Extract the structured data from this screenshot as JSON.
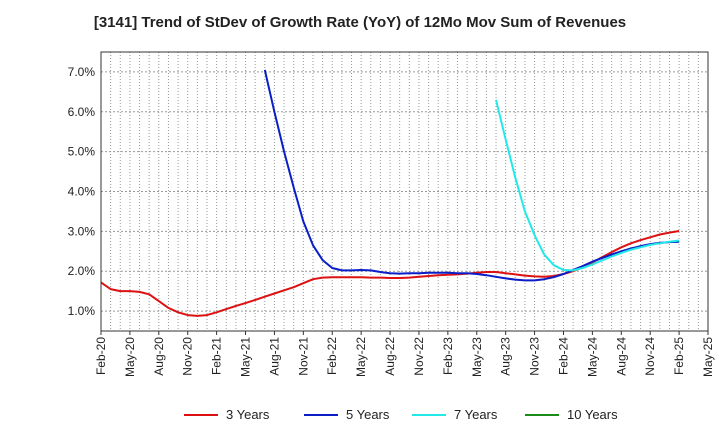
{
  "chart_data": {
    "type": "line",
    "title": "[3141]  Trend of StDev of Growth Rate (YoY) of 12Mo Mov Sum of Revenues",
    "xlabel": "",
    "ylabel": "",
    "ylim": [
      0.5,
      7.5
    ],
    "yticks": [
      1.0,
      2.0,
      3.0,
      4.0,
      5.0,
      6.0,
      7.0
    ],
    "ytick_labels": [
      "1.0%",
      "2.0%",
      "3.0%",
      "4.0%",
      "5.0%",
      "6.0%",
      "7.0%"
    ],
    "x_range_months": [
      0,
      63
    ],
    "xticks": [
      0,
      3,
      6,
      9,
      12,
      15,
      18,
      21,
      24,
      27,
      30,
      33,
      36,
      39,
      42,
      45,
      48,
      51,
      54,
      57,
      60,
      63
    ],
    "xtick_labels": [
      "Feb-20",
      "May-20",
      "Aug-20",
      "Nov-20",
      "Feb-21",
      "May-21",
      "Aug-21",
      "Nov-21",
      "Feb-22",
      "May-22",
      "Aug-22",
      "Nov-22",
      "Feb-23",
      "May-23",
      "Aug-23",
      "Nov-23",
      "Feb-24",
      "May-24",
      "Aug-24",
      "Nov-24",
      "Feb-25",
      "May-25"
    ],
    "grid": true,
    "legend_position": "bottom",
    "series": [
      {
        "name": "3 Years",
        "color": "#dd1111",
        "x": [
          0,
          1,
          2,
          3,
          4,
          5,
          6,
          7,
          8,
          9,
          10,
          11,
          12,
          13,
          14,
          15,
          16,
          17,
          18,
          19,
          20,
          21,
          22,
          23,
          24,
          25,
          26,
          27,
          28,
          29,
          30,
          31,
          32,
          33,
          34,
          35,
          36,
          37,
          38,
          39,
          40,
          41,
          42,
          43,
          44,
          45,
          46,
          47,
          48,
          49,
          50,
          51,
          52,
          53,
          54,
          55,
          56,
          57,
          58,
          59,
          60
        ],
        "values": [
          1.72,
          1.55,
          1.5,
          1.5,
          1.48,
          1.42,
          1.25,
          1.08,
          0.97,
          0.9,
          0.88,
          0.9,
          0.97,
          1.05,
          1.13,
          1.2,
          1.28,
          1.36,
          1.44,
          1.52,
          1.6,
          1.7,
          1.8,
          1.84,
          1.85,
          1.85,
          1.85,
          1.85,
          1.84,
          1.84,
          1.83,
          1.83,
          1.84,
          1.86,
          1.88,
          1.9,
          1.91,
          1.92,
          1.94,
          1.96,
          1.98,
          1.98,
          1.95,
          1.92,
          1.89,
          1.87,
          1.86,
          1.88,
          1.93,
          2.0,
          2.1,
          2.22,
          2.35,
          2.48,
          2.6,
          2.7,
          2.78,
          2.85,
          2.92,
          2.97,
          3.01
        ]
      },
      {
        "name": "5 Years",
        "color": "#0a1ec8",
        "x": [
          17,
          18,
          19,
          20,
          21,
          22,
          23,
          24,
          25,
          26,
          27,
          28,
          29,
          30,
          31,
          32,
          33,
          34,
          35,
          36,
          37,
          38,
          39,
          40,
          41,
          42,
          43,
          44,
          45,
          46,
          47,
          48,
          49,
          50,
          51,
          52,
          53,
          54,
          55,
          56,
          57,
          58,
          59,
          60
        ],
        "values": [
          7.05,
          6.0,
          5.0,
          4.1,
          3.25,
          2.65,
          2.28,
          2.08,
          2.02,
          2.02,
          2.03,
          2.02,
          1.98,
          1.95,
          1.94,
          1.95,
          1.95,
          1.96,
          1.96,
          1.96,
          1.95,
          1.95,
          1.93,
          1.9,
          1.86,
          1.82,
          1.79,
          1.77,
          1.77,
          1.8,
          1.85,
          1.93,
          2.03,
          2.13,
          2.24,
          2.33,
          2.42,
          2.5,
          2.57,
          2.63,
          2.68,
          2.71,
          2.73,
          2.74
        ]
      },
      {
        "name": "7 Years",
        "color": "#22e8e8",
        "x": [
          41,
          42,
          43,
          44,
          45,
          46,
          47,
          48,
          49,
          50,
          51,
          52,
          53,
          54,
          55,
          56,
          57,
          58,
          59,
          60
        ],
        "values": [
          6.3,
          5.3,
          4.35,
          3.5,
          2.9,
          2.42,
          2.15,
          2.03,
          2.02,
          2.08,
          2.17,
          2.27,
          2.37,
          2.46,
          2.54,
          2.6,
          2.66,
          2.7,
          2.74,
          2.77
        ]
      },
      {
        "name": "10 Years",
        "color": "#1a8a1a",
        "x": [],
        "values": []
      }
    ]
  }
}
